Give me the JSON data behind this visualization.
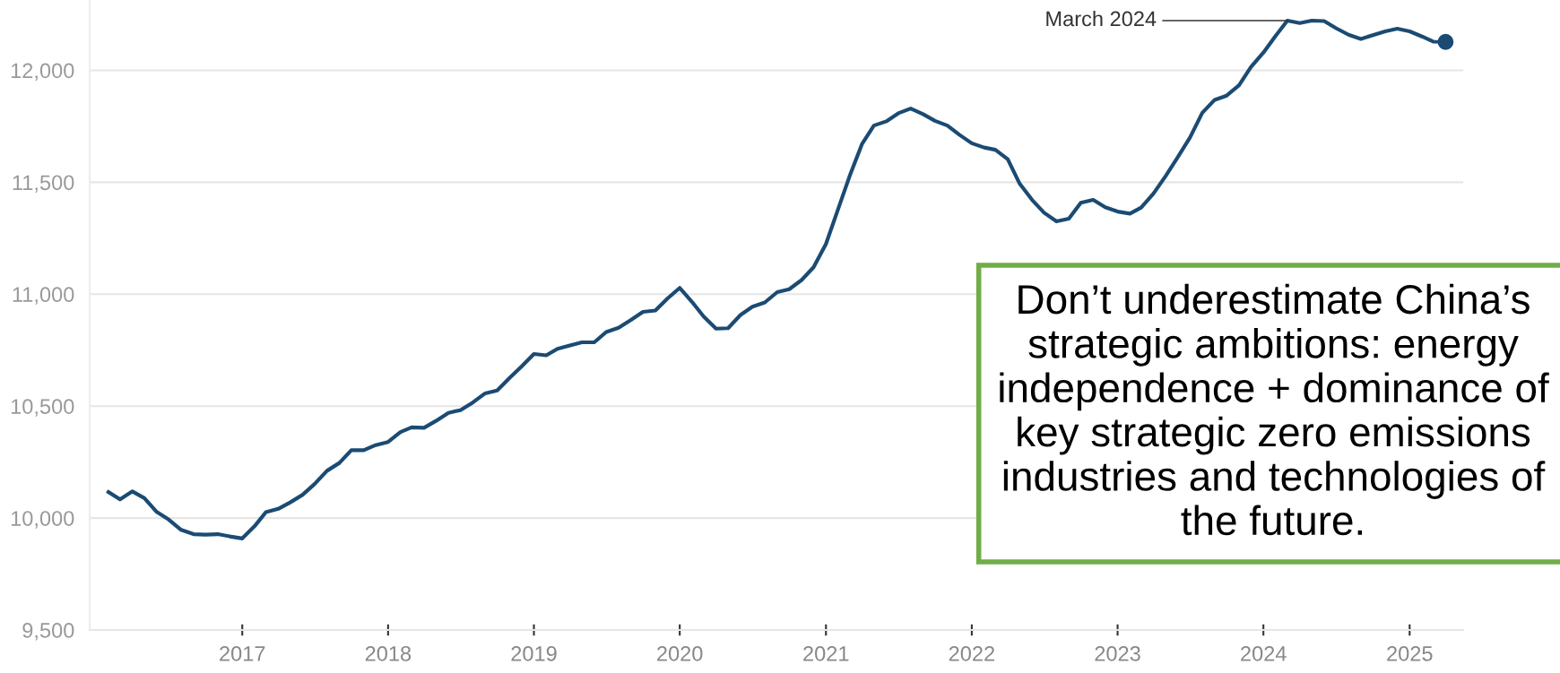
{
  "chart_data": {
    "type": "line",
    "x": [
      "2016-02",
      "2016-03",
      "2016-04",
      "2016-05",
      "2016-06",
      "2016-07",
      "2016-08",
      "2016-09",
      "2016-10",
      "2016-11",
      "2016-12",
      "2017-01",
      "2017-02",
      "2017-03",
      "2017-04",
      "2017-05",
      "2017-06",
      "2017-07",
      "2017-08",
      "2017-09",
      "2017-10",
      "2017-11",
      "2017-12",
      "2018-01",
      "2018-02",
      "2018-03",
      "2018-04",
      "2018-05",
      "2018-06",
      "2018-07",
      "2018-08",
      "2018-09",
      "2018-10",
      "2018-11",
      "2018-12",
      "2019-01",
      "2019-02",
      "2019-03",
      "2019-04",
      "2019-05",
      "2019-06",
      "2019-07",
      "2019-08",
      "2019-09",
      "2019-10",
      "2019-11",
      "2019-12",
      "2020-01",
      "2020-02",
      "2020-03",
      "2020-04",
      "2020-05",
      "2020-06",
      "2020-07",
      "2020-08",
      "2020-09",
      "2020-10",
      "2020-11",
      "2020-12",
      "2021-01",
      "2021-02",
      "2021-03",
      "2021-04",
      "2021-05",
      "2021-06",
      "2021-07",
      "2021-08",
      "2021-09",
      "2021-10",
      "2021-11",
      "2021-12",
      "2022-01",
      "2022-02",
      "2022-03",
      "2022-04",
      "2022-05",
      "2022-06",
      "2022-07",
      "2022-08",
      "2022-09",
      "2022-10",
      "2022-11",
      "2022-12",
      "2023-01",
      "2023-02",
      "2023-03",
      "2023-04",
      "2023-05",
      "2023-06",
      "2023-07",
      "2023-08",
      "2023-09",
      "2023-10",
      "2023-11",
      "2023-12",
      "2024-01",
      "2024-02",
      "2024-03",
      "2024-04",
      "2024-05",
      "2024-06",
      "2024-07",
      "2024-08",
      "2024-09",
      "2024-10",
      "2024-11",
      "2024-12",
      "2025-01",
      "2025-02",
      "2025-03",
      "2025-04"
    ],
    "series": [
      {
        "color": "#1b4b73",
        "values": [
          10116,
          10083,
          10119,
          10089,
          10027,
          9993,
          9947,
          9928,
          9926,
          9928,
          9918,
          9909,
          9964,
          10026,
          10041,
          10070,
          10104,
          10152,
          10211,
          10246,
          10303,
          10303,
          10326,
          10340,
          10384,
          10405,
          10403,
          10434,
          10470,
          10482,
          10516,
          10557,
          10570,
          10626,
          10677,
          10733,
          10727,
          10756,
          10771,
          10785,
          10785,
          10831,
          10850,
          10885,
          10921,
          10927,
          10980,
          11028,
          10965,
          10900,
          10846,
          10848,
          10907,
          10944,
          10963,
          11009,
          11022,
          11063,
          11120,
          11224,
          11383,
          11526,
          11670,
          11753,
          11772,
          11808,
          11829,
          11804,
          11774,
          11753,
          11712,
          11674,
          11655,
          11645,
          11603,
          11493,
          11421,
          11364,
          11325,
          11337,
          11408,
          11421,
          11388,
          11369,
          11360,
          11387,
          11450,
          11527,
          11613,
          11699,
          11810,
          11868,
          11887,
          11933,
          12015,
          12079,
          12155,
          12222,
          12211,
          12222,
          12220,
          12188,
          12159,
          12140,
          12157,
          12174,
          12186,
          12174,
          12151,
          12128,
          12127
        ]
      },
      {
        "type": "scatter",
        "color": "#1b4b73",
        "x": [
          "2025-04"
        ],
        "values": [
          12127
        ]
      }
    ],
    "xlim": [
      "2015-12-16",
      "2025-05-15"
    ],
    "xticks": [
      {
        "value": "2017-01-01",
        "label": "2017"
      },
      {
        "value": "2018-01-01",
        "label": "2018"
      },
      {
        "value": "2019-01-01",
        "label": "2019"
      },
      {
        "value": "2020-01-01",
        "label": "2020"
      },
      {
        "value": "2021-01-01",
        "label": "2021"
      },
      {
        "value": "2022-01-01",
        "label": "2022"
      },
      {
        "value": "2023-01-01",
        "label": "2023"
      },
      {
        "value": "2024-01-01",
        "label": "2024"
      },
      {
        "value": "2025-01-01",
        "label": "2025"
      }
    ],
    "ylim": [
      9500,
      12310
    ],
    "yticks": [
      {
        "value": 9500,
        "label": "9,500"
      },
      {
        "value": 10000,
        "label": "10,000"
      },
      {
        "value": 10500,
        "label": "10,500"
      },
      {
        "value": 11000,
        "label": "11,000"
      },
      {
        "value": 11500,
        "label": "11,500"
      },
      {
        "value": 12000,
        "label": "12,000"
      }
    ],
    "grid": "y",
    "annotations": [
      {
        "text": "March 2024",
        "x": "2024-03",
        "y": 12222
      },
      "Don’t underestimate China’s strategic ambitions: energy independence + dominance of key strategic zero emissions industries and technologies of the future."
    ]
  }
}
